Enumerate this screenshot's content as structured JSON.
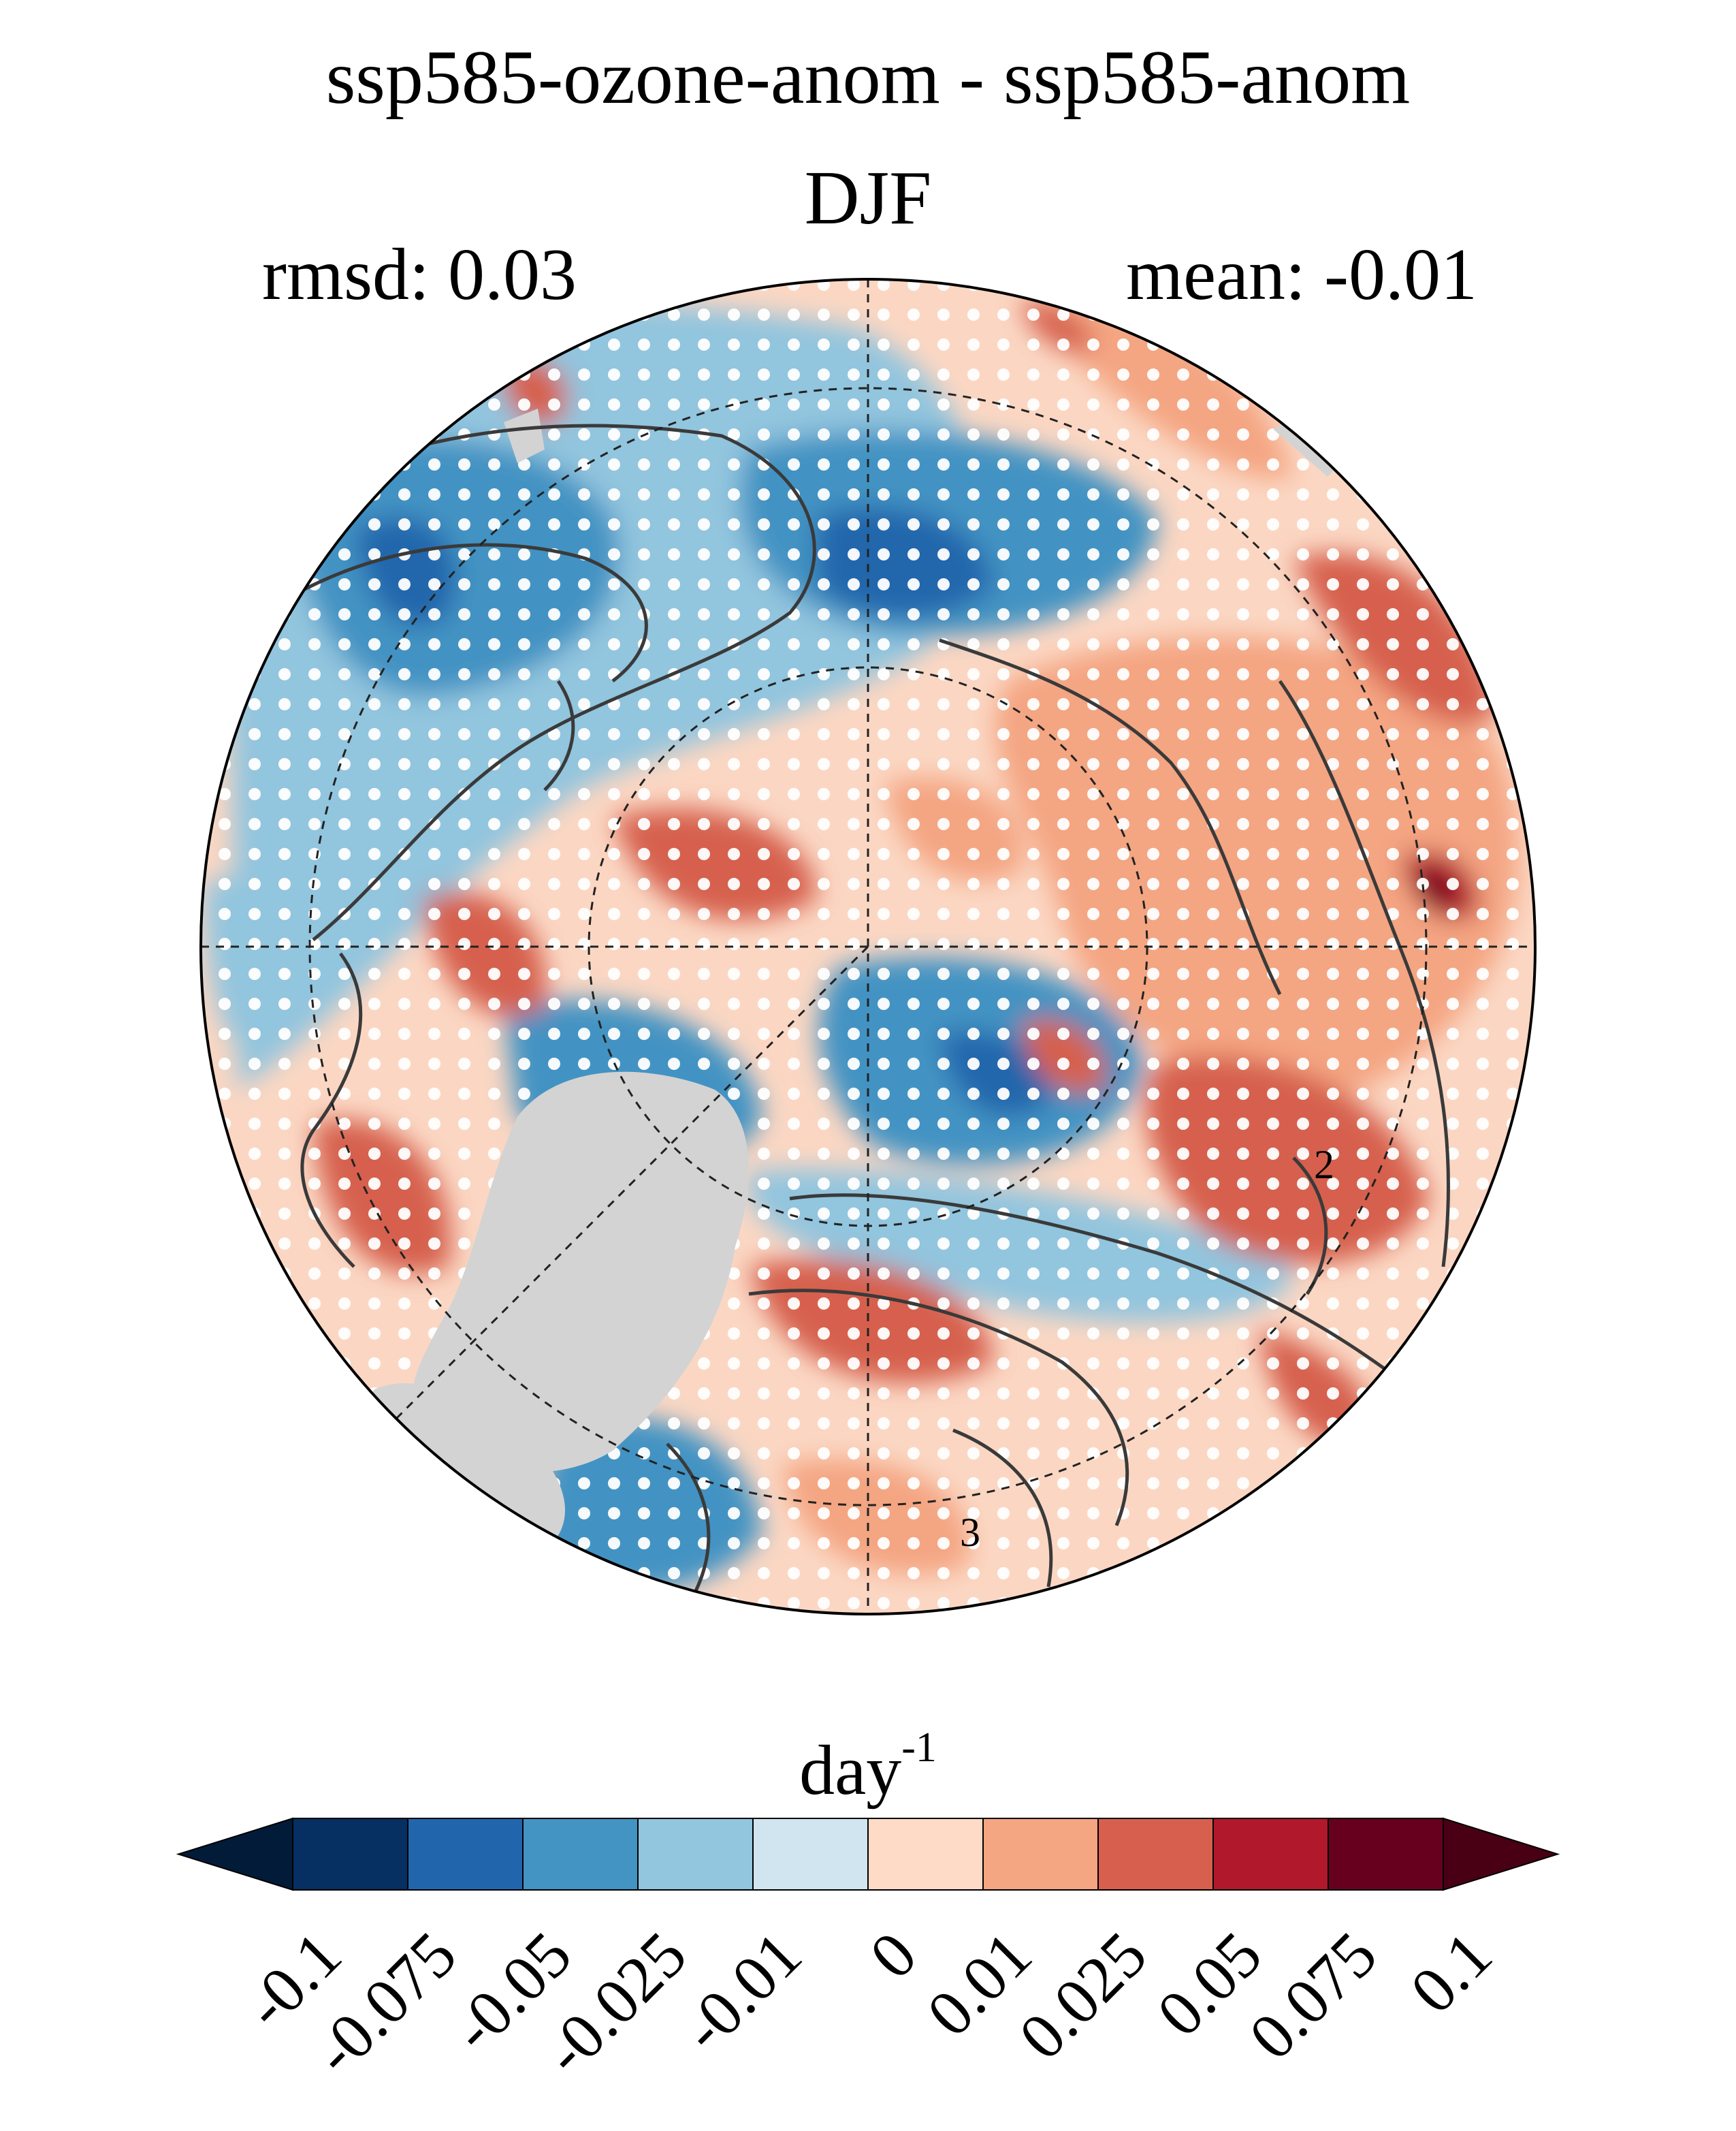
{
  "figure": {
    "title_line1": "ssp585-ozone-anom - ssp585-anom",
    "title_line2": "DJF",
    "rmsd_label": "rmsd: 0.03",
    "mean_label": "mean: -0.01"
  },
  "map": {
    "projection": "north polar stereographic",
    "stippling": "white dots mark significant regions",
    "contour_labels": [
      "2",
      "3"
    ],
    "land_mask_color": "#d3d3d3"
  },
  "colorbar": {
    "units_base": "day",
    "units_exp": "-1",
    "ticks": [
      "-0.1",
      "-0.075",
      "-0.05",
      "-0.025",
      "-0.01",
      "0",
      "0.01",
      "0.025",
      "0.05",
      "0.075",
      "0.1"
    ],
    "colors": [
      "#053061",
      "#2166ac",
      "#4393c3",
      "#92c5de",
      "#d1e5f0",
      "#fddbc7",
      "#f4a582",
      "#d6604d",
      "#b2182b",
      "#67001f"
    ],
    "under_color": "#021b38",
    "over_color": "#4a0014"
  }
}
